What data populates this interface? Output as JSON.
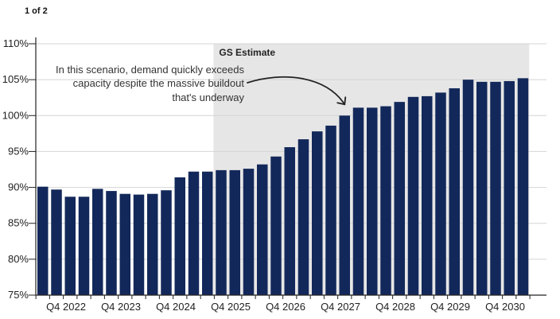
{
  "pager": {
    "label": "1 of 2"
  },
  "colors": {
    "bar": "#13285a",
    "estimate_shade": "#e6e6e6",
    "grid": "#d4d4d4",
    "axis": "#222222",
    "arrow": "#222222"
  },
  "chart_data": {
    "type": "bar",
    "title": "",
    "xlabel": "",
    "ylabel": "",
    "ylim": [
      75,
      110
    ],
    "yticks": [
      75,
      80,
      85,
      90,
      95,
      100,
      105,
      110
    ],
    "ytick_suffix": "%",
    "grid": true,
    "legend": "none",
    "x_tick_labels": [
      "Q4 2022",
      "Q4 2023",
      "Q4 2024",
      "Q4 2025",
      "Q4 2026",
      "Q4 2027",
      "Q4 2028",
      "Q4 2029",
      "Q4 2030"
    ],
    "series": [
      {
        "values": [
          90.1,
          89.7,
          88.7,
          88.7,
          89.8,
          89.5,
          89.1,
          89.0,
          89.1,
          89.6,
          91.4,
          92.2,
          92.2,
          92.4,
          92.4,
          92.6,
          93.2,
          94.3,
          95.6,
          96.7,
          97.8,
          98.6,
          100.0,
          101.1,
          101.1,
          101.3,
          101.9,
          102.6,
          102.7,
          103.2,
          103.8,
          105.0,
          104.7,
          104.7,
          104.8,
          105.2
        ]
      }
    ],
    "estimate_region": {
      "label": "GS Estimate",
      "start_index": 13,
      "end_index": 35
    },
    "annotation": {
      "lines": [
        "In this scenario, demand quickly exceeds",
        "capacity despite the massive buildout",
        "that's underway"
      ],
      "points_to_index": 22
    }
  }
}
